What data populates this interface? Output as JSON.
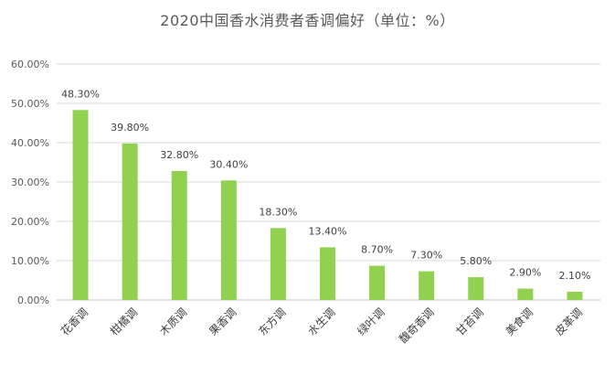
{
  "chart_data": {
    "type": "bar",
    "title": "2020中国香水消费者香调偏好（单位：%）",
    "xlabel": "",
    "ylabel": "",
    "categories": [
      "花香调",
      "柑橘调",
      "木质调",
      "果香调",
      "东方调",
      "水生调",
      "绿叶调",
      "馥奇香调",
      "甘苔调",
      "美食调",
      "皮革调"
    ],
    "values": [
      48.3,
      39.8,
      32.8,
      30.4,
      18.3,
      13.4,
      8.7,
      7.3,
      5.8,
      2.9,
      2.1
    ],
    "value_labels": [
      "48.30%",
      "39.80%",
      "32.80%",
      "30.40%",
      "18.30%",
      "13.40%",
      "8.70%",
      "7.30%",
      "5.80%",
      "2.90%",
      "2.10%"
    ],
    "y_ticks": [
      "0.00%",
      "10.00%",
      "20.00%",
      "30.00%",
      "40.00%",
      "50.00%",
      "60.00%"
    ],
    "ylim": [
      0,
      60
    ],
    "grid": true,
    "legend": "none",
    "colors": {
      "bar": "#92D050",
      "grid": "#D9D9D9",
      "axis_text": "#595959",
      "title": "#595959"
    }
  }
}
